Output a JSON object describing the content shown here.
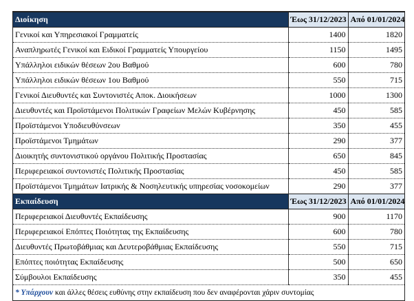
{
  "sections": [
    {
      "header": {
        "title": "Διοίκηση",
        "col1": "Έως 31/12/2023",
        "col2": "Από 01/01/2024"
      },
      "rows": [
        [
          "Γενικοί και Υπηρεσιακοί Γραμματείς",
          1400,
          1820
        ],
        [
          "Αναπληρωτές Γενικοί και Ειδικοί Γραμματείς Υπουργείου",
          1150,
          1495
        ],
        [
          "Υπάλληλοι ειδικών θέσεων 2ου Βαθμού",
          600,
          780
        ],
        [
          "Υπάλληλοι ειδικών θέσεων 1ου Βαθμού",
          550,
          715
        ],
        [
          "Γενικοί Διευθυντές και Συντονιστές Αποκ. Διοικήσεων",
          1000,
          1300
        ],
        [
          "Διευθυντές και Προϊστάμενοι Πολιτικών Γραφείων Μελών Κυβέρνησης",
          450,
          585
        ],
        [
          "Προϊστάμενοι Υποδιευθύνσεων",
          350,
          455
        ],
        [
          "Προϊστάμενοι Τμημάτων",
          290,
          377
        ],
        [
          "Διοικητής συντονιστικού οργάνου Πολιτικής Προστασίας",
          650,
          845
        ],
        [
          "Περιφερειακοί συντονιστές Πολιτικής Προστασίας",
          450,
          585
        ],
        [
          "Προϊστάμενοι Τμημάτων Ιατρικής & Νοσηλευτικής υπηρεσίας νοσοκομείων",
          290,
          377
        ]
      ]
    },
    {
      "header": {
        "title": "Εκπαίδευση",
        "col1": "Έως 31/12/2023",
        "col2": "Από 01/01/2024"
      },
      "rows": [
        [
          "Περιφερειακοί Διευθυντές Εκπαίδευσης",
          900,
          1170
        ],
        [
          "Περιφερειακοί Επόπτες Ποιότητας της Εκπαίδευσης",
          600,
          780
        ],
        [
          "Διευθυντές Πρωτοβάθμιας και Δευτεροβάθμιας Εκπαίδευσης",
          550,
          715
        ],
        [
          "Επόπτες ποιότητας Εκπαίδευσης",
          500,
          650
        ],
        [
          "Σύμβουλοι Εκπαίδευσης",
          350,
          455
        ]
      ]
    }
  ],
  "footnote": {
    "marker": "* Υπάρχουν",
    "text": "και άλλες θέσεις ευθύνης στην εκπαίδευση που δεν αναφέρονται χάριν συντομίας"
  }
}
